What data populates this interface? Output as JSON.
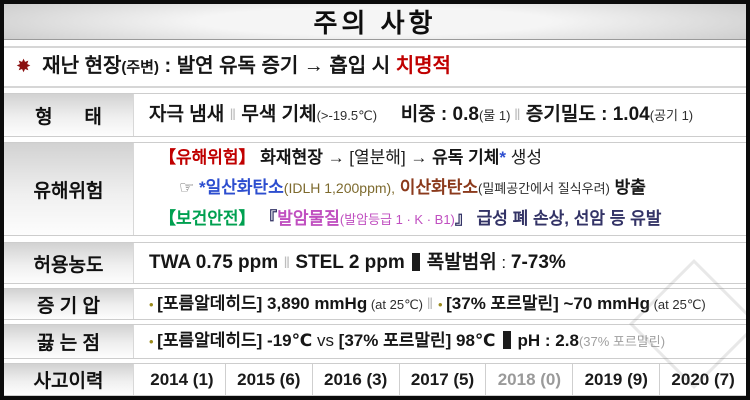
{
  "title": "주의 사항",
  "warning": {
    "segments": [
      {
        "text": "✸",
        "cls": "star"
      },
      {
        "text": "  재난 현장",
        "cls": "b warn-line"
      },
      {
        "text": "(주변)",
        "cls": "bsm"
      },
      {
        "text": " : 발연 유독 증기 → 흡입 시 ",
        "cls": "b warn-line"
      },
      {
        "text": "치명적",
        "cls": "b warn-line red"
      }
    ]
  },
  "rows": [
    {
      "header": "형      태",
      "lines": [
        [
          {
            "text": "자극 냄새 ",
            "cls": "b big"
          },
          {
            "text": "‖",
            "cls": "sep"
          },
          {
            "text": " 무색 기체",
            "cls": "b big"
          },
          {
            "text": "(>-19.5℃)",
            "cls": "sm"
          },
          {
            "text": "     ",
            "cls": ""
          },
          {
            "text": "비중 : 0.8",
            "cls": "b big"
          },
          {
            "text": "(물 1) ",
            "cls": "sm"
          },
          {
            "text": "‖",
            "cls": "sep"
          },
          {
            "text": " 증기밀도 : 1.04",
            "cls": "b big"
          },
          {
            "text": "(공기 1)",
            "cls": "sm"
          }
        ]
      ]
    },
    {
      "header": "유해위험",
      "lines": [
        [
          {
            "text": "【유해위험】",
            "cls": "b red"
          },
          {
            "text": " 화재현장 ",
            "cls": "b"
          },
          {
            "text": "→ [열분해] → ",
            "cls": ""
          },
          {
            "text": "유독 기체",
            "cls": "b"
          },
          {
            "text": "*",
            "cls": "b blue"
          },
          {
            "text": " 생성",
            "cls": ""
          }
        ],
        [
          {
            "text": "☞ ",
            "cls": "hand"
          },
          {
            "text": "*일산화탄소",
            "cls": "b blue"
          },
          {
            "text": "(IDLH 1,200ppm),",
            "cls": "olv"
          },
          {
            "text": " 이산화탄소",
            "cls": "b dred"
          },
          {
            "text": "(밀폐공간에서 질식우려)",
            "cls": "sm"
          },
          {
            "text": " 방출",
            "cls": "b"
          }
        ],
        [
          {
            "text": "【보건안전】",
            "cls": "b green"
          },
          {
            "text": " 『",
            "cls": "b navy"
          },
          {
            "text": "발암물질",
            "cls": "b mag"
          },
          {
            "text": "(발암등급 1 · K · B1)",
            "cls": "magsm"
          },
          {
            "text": "』",
            "cls": "b navy"
          },
          {
            "text": " 급성 폐 손상, 선암 등 유발",
            "cls": "b navy"
          }
        ]
      ]
    },
    {
      "header": "허용농도",
      "lines": [
        [
          {
            "text": "TWA 0.75 ppm ",
            "cls": "b big"
          },
          {
            "text": "‖",
            "cls": "sep"
          },
          {
            "text": " STEL 2 ppm",
            "cls": "b big"
          },
          {
            "text": "",
            "cls": "thick"
          },
          {
            "text": "폭발범위",
            "cls": "b big"
          },
          {
            "text": " : ",
            "cls": ""
          },
          {
            "text": "7-73%",
            "cls": "b big"
          }
        ]
      ]
    },
    {
      "header": "증 기 압",
      "lines": [
        [
          {
            "text": "• ",
            "cls": "bullet"
          },
          {
            "text": "[포름알데히드] 3,890 mmHg",
            "cls": "b"
          },
          {
            "text": " (at 25℃) ",
            "cls": "sm"
          },
          {
            "text": "‖",
            "cls": "sep"
          },
          {
            "text": " ",
            "cls": ""
          },
          {
            "text": "• ",
            "cls": "bullet"
          },
          {
            "text": "[37% 포르말린]",
            "cls": "b"
          },
          {
            "text": " ~70 mmHg",
            "cls": "b"
          },
          {
            "text": " (at 25℃)",
            "cls": "sm"
          }
        ]
      ]
    },
    {
      "header": "끓 는 점",
      "lines": [
        [
          {
            "text": "• ",
            "cls": "bullet"
          },
          {
            "text": "[포름알데히드] -19℃",
            "cls": "b"
          },
          {
            "text": " vs ",
            "cls": ""
          },
          {
            "text": "[37% 포르말린] 98℃",
            "cls": "b"
          },
          {
            "text": "",
            "cls": "thick"
          },
          {
            "text": "pH : 2.8",
            "cls": "b"
          },
          {
            "text": "(37% 포르말린)",
            "cls": "fnt"
          }
        ]
      ]
    },
    {
      "header": "사고이력",
      "cells": [
        {
          "text": "2014 (1)",
          "cls": ""
        },
        {
          "text": "2015 (6)",
          "cls": ""
        },
        {
          "text": "2016 (3)",
          "cls": ""
        },
        {
          "text": "2017 (5)",
          "cls": ""
        },
        {
          "text": "2018 (0)",
          "cls": "gry"
        },
        {
          "text": "2019 (9)",
          "cls": ""
        },
        {
          "text": "2020 (7)",
          "cls": ""
        }
      ]
    }
  ],
  "colors": {
    "fatal_red": "#c00000",
    "hazard_red": "#c00000",
    "carbon_monoxide_blue": "#2d4ecf",
    "carbon_dioxide_brown": "#8b3a1c",
    "health_safety_green": "#00a050",
    "carcinogen_magenta": "#c04fc0",
    "muted_year_gray": "#9a9a9a",
    "title_gradient_gray": "#c9c9c9"
  }
}
